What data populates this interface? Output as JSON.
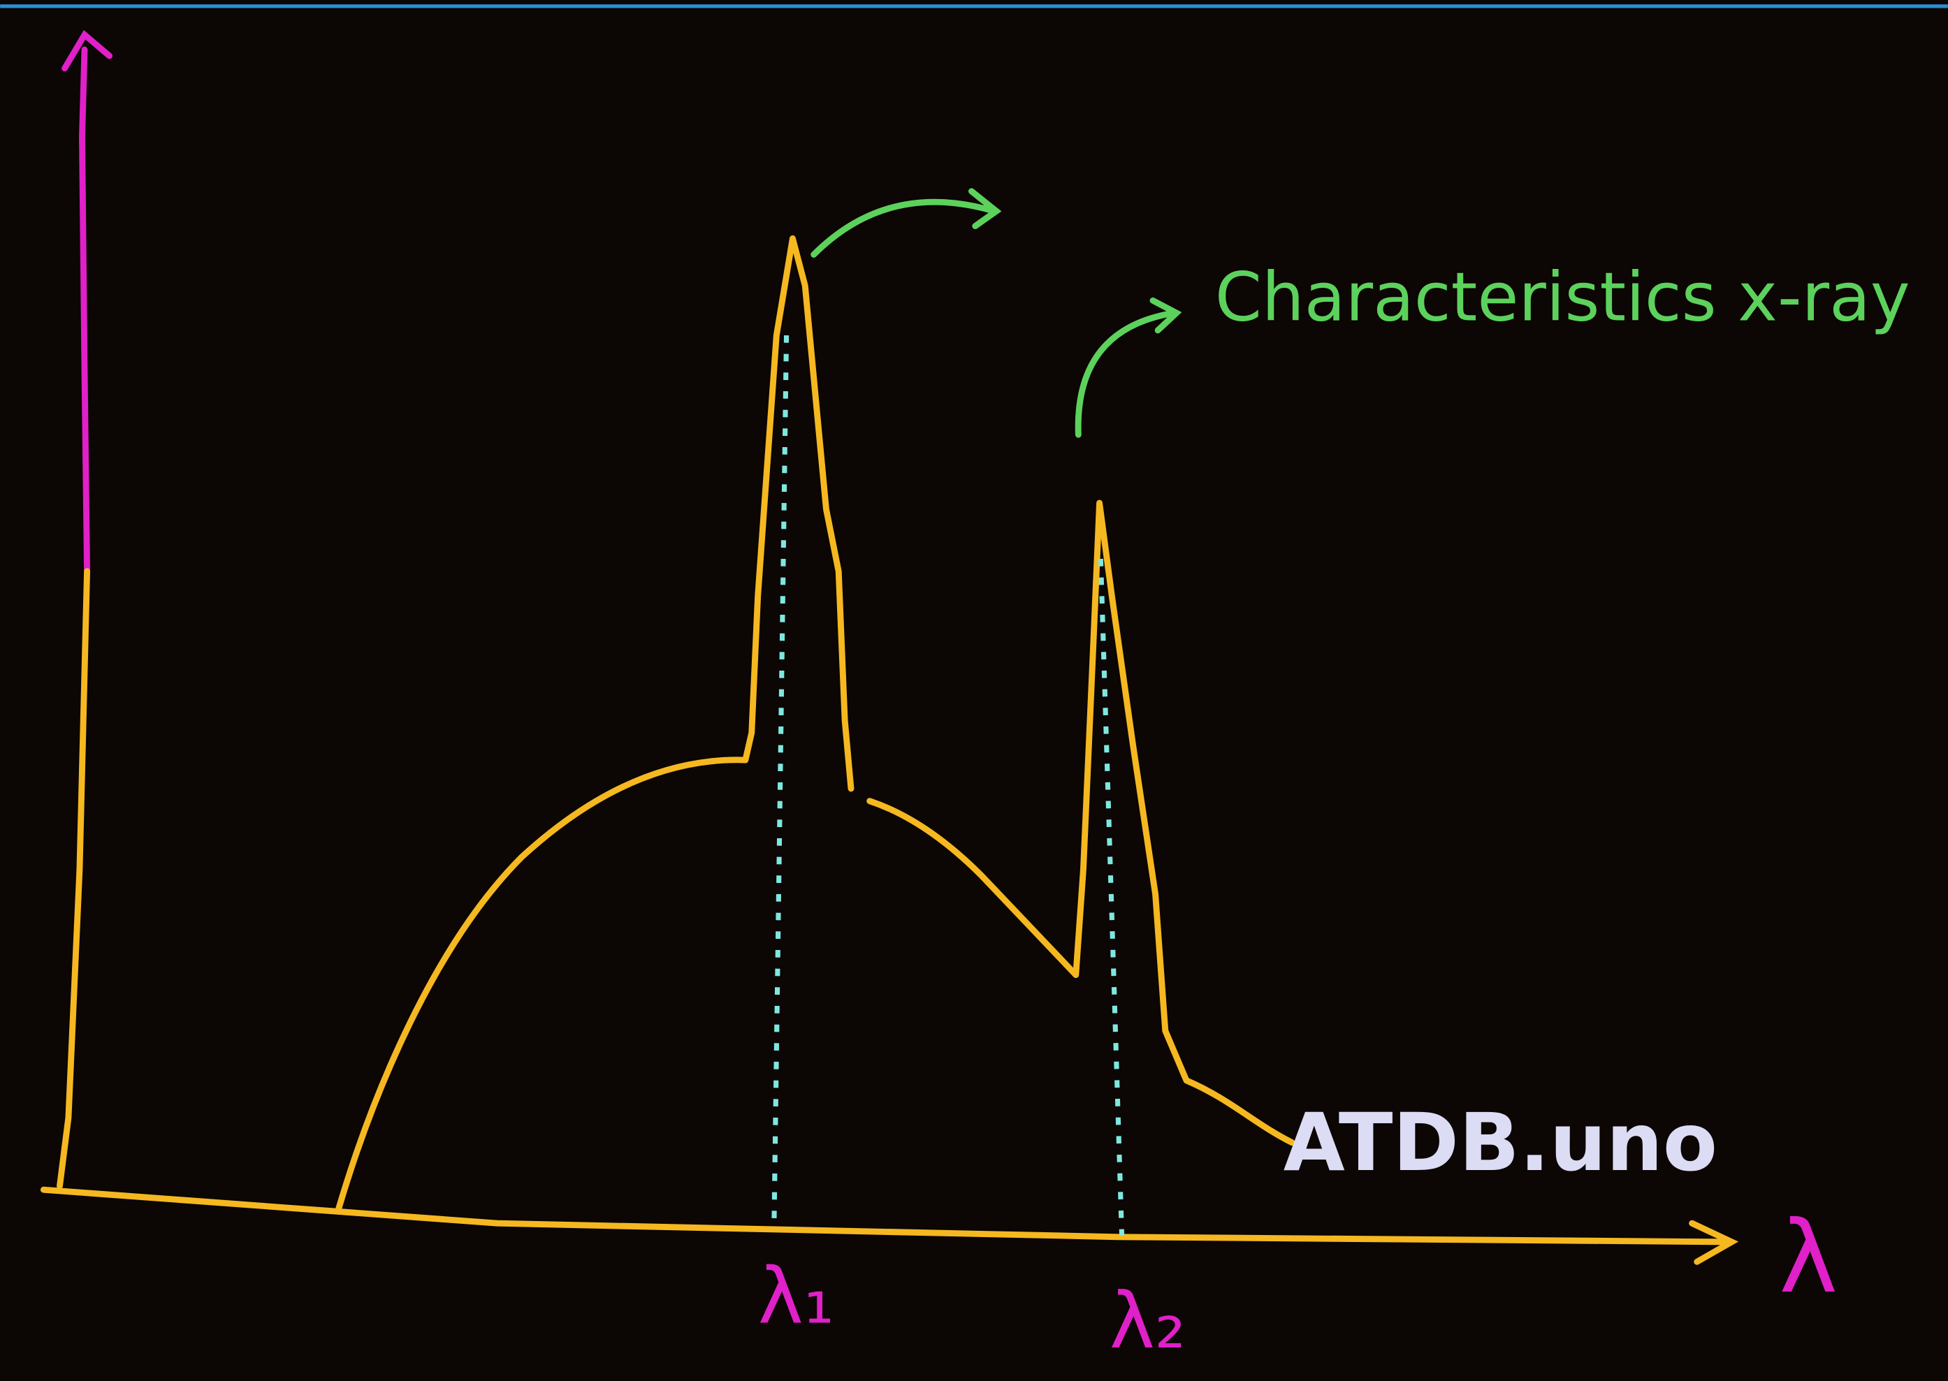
{
  "annotation": "Characteristics x-ray",
  "x_axis": {
    "label": "λ"
  },
  "markers": [
    {
      "label": "λ₁"
    },
    {
      "label": "λ₂"
    }
  ],
  "watermark": "ATDB.uno"
}
